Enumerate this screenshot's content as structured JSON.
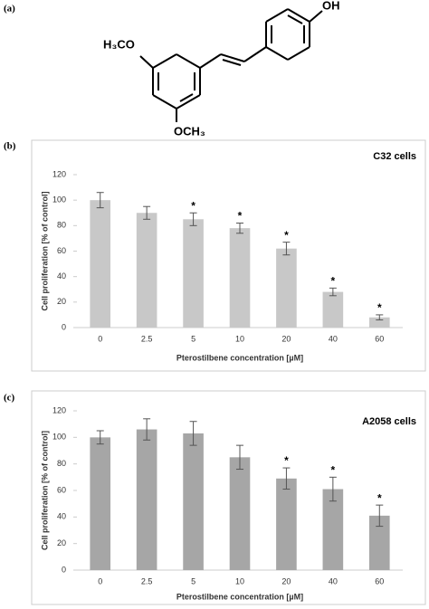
{
  "panel_labels": [
    "(a)",
    "(b)",
    "(c)"
  ],
  "structure": {
    "labels": [
      "H₃CO",
      "OCH₃",
      "OH"
    ]
  },
  "chart_data": [
    {
      "type": "bar",
      "title": "C32 cells",
      "xlabel": "Pterostilbene concentration [µM]",
      "ylabel": "Cell proliferation [% of control]",
      "categories": [
        "0",
        "2.5",
        "5",
        "10",
        "20",
        "40",
        "60"
      ],
      "values": [
        100,
        90,
        85,
        78,
        62,
        28,
        8
      ],
      "errors": [
        6,
        5,
        5,
        4,
        5,
        3,
        2
      ],
      "color": "#c8c8c8",
      "ylim": [
        0,
        120
      ],
      "yticks": [
        0,
        20,
        40,
        60,
        80,
        100,
        120
      ],
      "annotations": [
        {
          "x": "5",
          "text": "*"
        },
        {
          "x": "10",
          "text": "*"
        },
        {
          "x": "20",
          "text": "*"
        },
        {
          "x": "40",
          "text": "*"
        },
        {
          "x": "60",
          "text": "*"
        }
      ]
    },
    {
      "type": "bar",
      "title": "A2058 cells",
      "xlabel": "Pterostilbene concentration [µM]",
      "ylabel": "Cell proliferation [% of control]",
      "categories": [
        "0",
        "2.5",
        "5",
        "10",
        "20",
        "40",
        "60"
      ],
      "values": [
        100,
        106,
        103,
        85,
        69,
        61,
        41
      ],
      "errors": [
        5,
        8,
        9,
        9,
        8,
        9,
        8
      ],
      "color": "#a6a6a6",
      "ylim": [
        0,
        120
      ],
      "yticks": [
        0,
        20,
        40,
        60,
        80,
        100,
        120
      ],
      "annotations": [
        {
          "x": "20",
          "text": "*"
        },
        {
          "x": "40",
          "text": "*"
        },
        {
          "x": "60",
          "text": "*"
        }
      ]
    }
  ]
}
